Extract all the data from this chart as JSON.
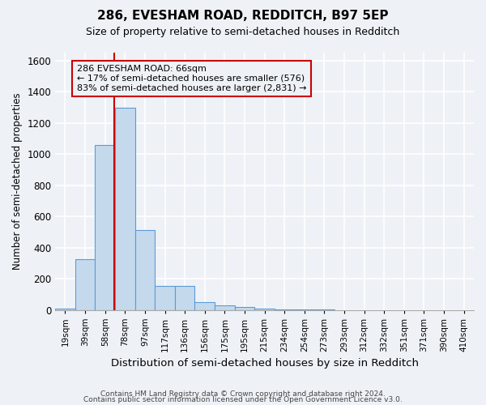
{
  "title": "286, EVESHAM ROAD, REDDITCH, B97 5EP",
  "subtitle": "Size of property relative to semi-detached houses in Redditch",
  "xlabel": "Distribution of semi-detached houses by size in Redditch",
  "ylabel": "Number of semi-detached properties",
  "footer_line1": "Contains HM Land Registry data © Crown copyright and database right 2024.",
  "footer_line2": "Contains public sector information licensed under the Open Government Licence v3.0.",
  "categories": [
    "19sqm",
    "39sqm",
    "58sqm",
    "78sqm",
    "97sqm",
    "117sqm",
    "136sqm",
    "156sqm",
    "175sqm",
    "195sqm",
    "215sqm",
    "234sqm",
    "254sqm",
    "273sqm",
    "293sqm",
    "312sqm",
    "332sqm",
    "351sqm",
    "371sqm",
    "390sqm",
    "410sqm"
  ],
  "values": [
    10,
    325,
    1060,
    1295,
    510,
    155,
    155,
    52,
    28,
    20,
    10,
    4,
    2,
    1,
    0,
    0,
    0,
    0,
    0,
    0,
    0
  ],
  "bar_color": "#c5d9ed",
  "bar_edge_color": "#5b9bd5",
  "ylim": [
    0,
    1650
  ],
  "yticks": [
    0,
    200,
    400,
    600,
    800,
    1000,
    1200,
    1400,
    1600
  ],
  "property_size": 66,
  "property_label": "286 EVESHAM ROAD: 66sqm",
  "smaller_pct": "17%",
  "smaller_count": 576,
  "larger_pct": "83%",
  "larger_count": 2831,
  "vline_color": "#cc0000",
  "annotation_box_edge_color": "#cc0000",
  "background_color": "#eef2f7",
  "grid_color": "#ffffff",
  "bin_width": 19
}
